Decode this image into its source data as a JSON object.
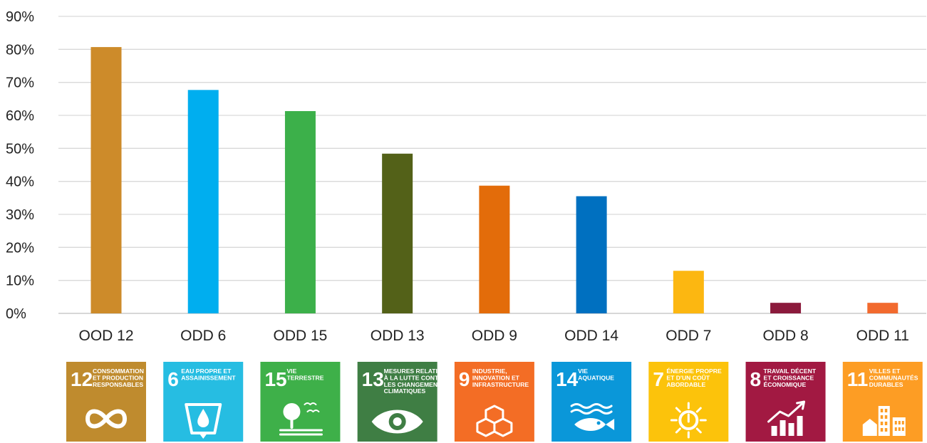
{
  "chart_data": {
    "type": "bar",
    "categories": [
      "OOD 12",
      "ODD 6",
      "ODD 15",
      "ODD 13",
      "ODD 9",
      "ODD 14",
      "ODD 7",
      "ODD 8",
      "ODD 11"
    ],
    "values": [
      80.7,
      67.7,
      61.3,
      48.4,
      38.7,
      35.5,
      12.9,
      3.2,
      3.2
    ],
    "ylim": [
      0,
      90
    ],
    "yticks": [
      0,
      10,
      20,
      30,
      40,
      50,
      60,
      70,
      80,
      90
    ],
    "ytick_labels": [
      "0%",
      "10%",
      "20%",
      "30%",
      "40%",
      "50%",
      "60%",
      "70%",
      "80%",
      "90%"
    ],
    "grid": true,
    "colors": [
      "#CD8B2A",
      "#00AEEF",
      "#3CB04A",
      "#536118",
      "#E36C0A",
      "#0070C0",
      "#FCB711",
      "#8B1A3C",
      "#F26A2E"
    ]
  },
  "sdg_icons": [
    {
      "number": "12",
      "lines": [
        "CONSOMMATION",
        "ET PRODUCTION",
        "RESPONSABLES"
      ],
      "color": "#BF8B2E",
      "icon": "infinity-icon"
    },
    {
      "number": "6",
      "lines": [
        "EAU PROPRE ET",
        "ASSAINISSEMENT"
      ],
      "color": "#26BDE2",
      "icon": "water-glass-icon"
    },
    {
      "number": "15",
      "lines": [
        "VIE",
        "TERRESTRE"
      ],
      "color": "#3EB049",
      "icon": "tree-birds-icon"
    },
    {
      "number": "13",
      "lines": [
        "MESURES RELATIVES",
        "À LA LUTTE CONTRE",
        "LES CHANGEMENTS",
        "CLIMATIQUES"
      ],
      "color": "#3F7E44",
      "icon": "eye-globe-icon"
    },
    {
      "number": "9",
      "lines": [
        "INDUSTRIE,",
        "INNOVATION ET",
        "INFRASTRUCTURE"
      ],
      "color": "#F36D25",
      "icon": "cubes-icon"
    },
    {
      "number": "14",
      "lines": [
        "VIE",
        "AQUATIQUE"
      ],
      "color": "#0A97D9",
      "icon": "fish-waves-icon"
    },
    {
      "number": "7",
      "lines": [
        "ÉNERGIE PROPRE",
        "ET D'UN COÛT",
        "ABORDABLE"
      ],
      "color": "#FCC30B",
      "icon": "sun-power-icon"
    },
    {
      "number": "8",
      "lines": [
        "TRAVAIL DÉCENT",
        "ET CROISSANCE",
        "ÉCONOMIQUE"
      ],
      "color": "#A21942",
      "icon": "growth-chart-icon"
    },
    {
      "number": "11",
      "lines": [
        "VILLES ET",
        "COMMUNAUTÉS",
        "DURABLES"
      ],
      "color": "#FD9D24",
      "icon": "city-buildings-icon"
    }
  ]
}
